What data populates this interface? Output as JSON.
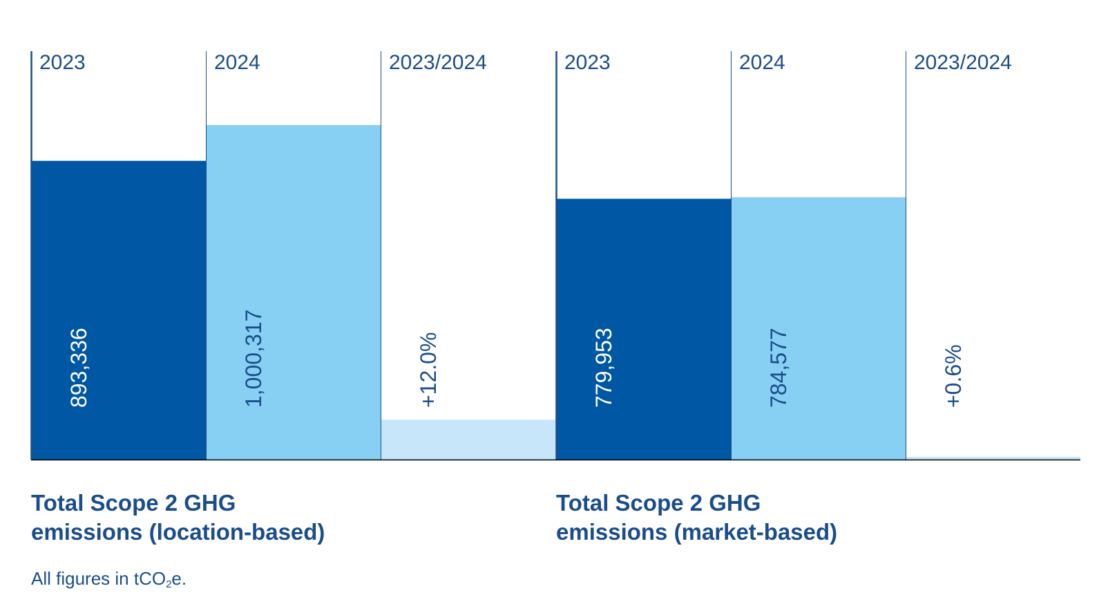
{
  "chart_data": [
    {
      "type": "bar",
      "title_lines": [
        "Total Scope 2 GHG",
        "emissions (location-based)"
      ],
      "columns": [
        {
          "header": "2023",
          "value": 893336,
          "label": "893,336",
          "kind": "value",
          "color": "#0057a3",
          "label_color": "#ffffff"
        },
        {
          "header": "2024",
          "value": 1000317,
          "label": "1,000,317",
          "kind": "value",
          "color": "#87cff3",
          "label_color": "#1a4d8c"
        },
        {
          "header": "2023/2024",
          "value": 12.0,
          "label": "+12.0%",
          "kind": "change",
          "color": "#c8e6f9",
          "label_color": "#1a4d8c"
        }
      ]
    },
    {
      "type": "bar",
      "title_lines": [
        "Total Scope 2 GHG",
        "emissions (market-based)"
      ],
      "columns": [
        {
          "header": "2023",
          "value": 779953,
          "label": "779,953",
          "kind": "value",
          "color": "#0057a3",
          "label_color": "#ffffff"
        },
        {
          "header": "2024",
          "value": 784577,
          "label": "784,577",
          "kind": "value",
          "color": "#87cff3",
          "label_color": "#1a4d8c"
        },
        {
          "header": "2023/2024",
          "value": 0.6,
          "label": "+0.6%",
          "kind": "change",
          "color": "#c8e6f9",
          "label_color": "#1a4d8c"
        }
      ]
    }
  ],
  "footnote": {
    "prefix": "All figures in tCO",
    "subscript": "2",
    "suffix": "e."
  },
  "colors": {
    "text": "#1a4d8c",
    "divider": "#1a4d8c",
    "baseline": "#000000"
  }
}
